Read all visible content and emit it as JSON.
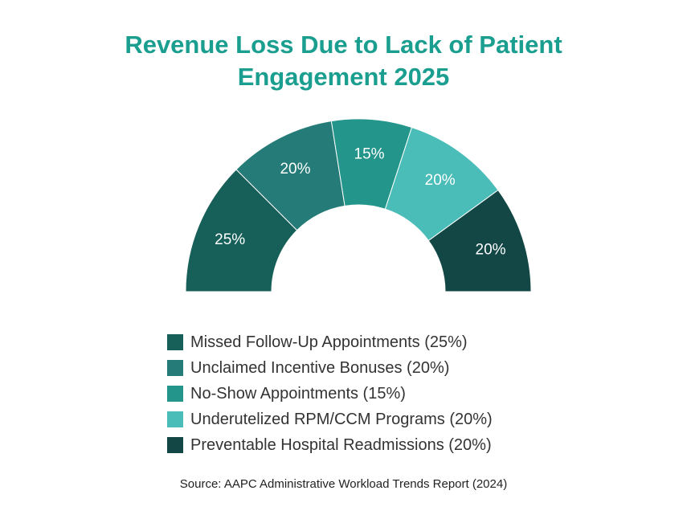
{
  "title_lines": [
    "Revenue Loss Due to Lack of Patient",
    "Engagement 2025"
  ],
  "source": "Source: AAPC Administrative Workload Trends Report (2024)",
  "chart_data": {
    "type": "pie",
    "variant": "half-donut",
    "title": "Revenue Loss Due to Lack of Patient Engagement 2025",
    "categories": [
      "Missed Follow-Up Appointments",
      "Unclaimed Incentive Bonuses",
      "No-Show Appointments",
      "Underutelized RPM/CCM Programs",
      "Preventable Hospital Readmissions"
    ],
    "values": [
      25,
      20,
      15,
      20,
      20
    ],
    "data_labels": [
      "25%",
      "20%",
      "15%",
      "20%",
      "20%"
    ],
    "legend_labels": [
      "Missed Follow-Up Appointments (25%)",
      "Unclaimed Incentive Bonuses (20%)",
      "No-Show Appointments (15%)",
      "Underutelized RPM/CCM Programs (20%)",
      "Preventable Hospital Readmissions (20%)"
    ],
    "colors": [
      "#175f59",
      "#247b77",
      "#23958b",
      "#4bbdb8",
      "#124745"
    ],
    "label_color": "#ffffff",
    "legend_position": "bottom"
  }
}
